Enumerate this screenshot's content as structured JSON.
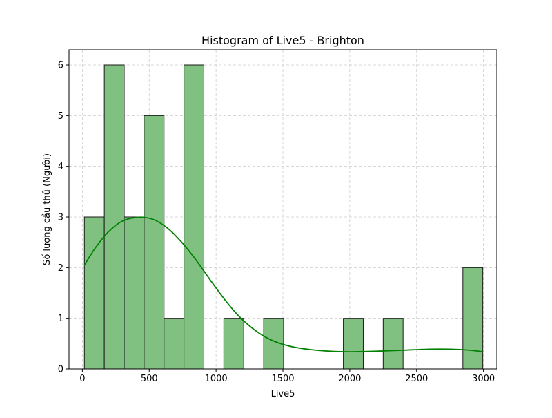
{
  "chart_data": {
    "type": "bar",
    "title": "Histogram of Live5 - Brighton",
    "xlabel": "Live5",
    "ylabel": "Số lượng cầu thủ (Người)",
    "xlim": [
      -100,
      3100
    ],
    "ylim": [
      0,
      6.3
    ],
    "xticks": [
      0,
      500,
      1000,
      1500,
      2000,
      2500,
      3000
    ],
    "yticks": [
      0,
      1,
      2,
      3,
      4,
      5,
      6
    ],
    "grid": true,
    "colors": {
      "bar_fill": "#80c080",
      "bar_edge": "#1a1a1a",
      "kde_line": "#008000",
      "grid": "#cccccc"
    },
    "bins": [
      {
        "x0": 15,
        "x1": 164,
        "count": 3
      },
      {
        "x0": 164,
        "x1": 313,
        "count": 6
      },
      {
        "x0": 313,
        "x1": 462,
        "count": 3
      },
      {
        "x0": 462,
        "x1": 611,
        "count": 5
      },
      {
        "x0": 611,
        "x1": 760,
        "count": 1
      },
      {
        "x0": 760,
        "x1": 909,
        "count": 6
      },
      {
        "x0": 909,
        "x1": 1058,
        "count": 0
      },
      {
        "x0": 1058,
        "x1": 1207,
        "count": 1
      },
      {
        "x0": 1207,
        "x1": 1356,
        "count": 0
      },
      {
        "x0": 1356,
        "x1": 1505,
        "count": 1
      },
      {
        "x0": 1505,
        "x1": 1654,
        "count": 0
      },
      {
        "x0": 1654,
        "x1": 1803,
        "count": 0
      },
      {
        "x0": 1803,
        "x1": 1952,
        "count": 0
      },
      {
        "x0": 1952,
        "x1": 2101,
        "count": 1
      },
      {
        "x0": 2101,
        "x1": 2250,
        "count": 0
      },
      {
        "x0": 2250,
        "x1": 2399,
        "count": 1
      },
      {
        "x0": 2399,
        "x1": 2548,
        "count": 0
      },
      {
        "x0": 2548,
        "x1": 2697,
        "count": 0
      },
      {
        "x0": 2697,
        "x1": 2846,
        "count": 0
      },
      {
        "x0": 2846,
        "x1": 2995,
        "count": 2
      }
    ],
    "kde": {
      "x": [
        15,
        100,
        200,
        300,
        400,
        470,
        550,
        650,
        750,
        850,
        950,
        1050,
        1150,
        1250,
        1350,
        1450,
        1550,
        1650,
        1750,
        1850,
        1950,
        2050,
        2200,
        2400,
        2600,
        2750,
        2900,
        2995
      ],
      "y": [
        2.05,
        2.4,
        2.72,
        2.92,
        2.99,
        2.99,
        2.93,
        2.75,
        2.48,
        2.15,
        1.78,
        1.42,
        1.1,
        0.85,
        0.66,
        0.53,
        0.45,
        0.4,
        0.37,
        0.35,
        0.34,
        0.34,
        0.35,
        0.37,
        0.39,
        0.39,
        0.37,
        0.34
      ]
    }
  }
}
